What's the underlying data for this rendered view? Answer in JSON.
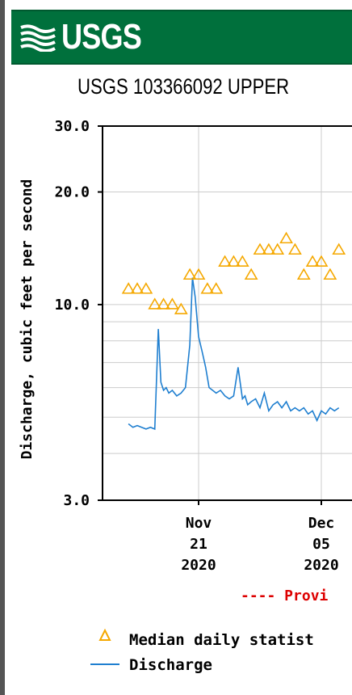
{
  "header": {
    "logo_text": "USGS",
    "logo_icon": "usgs-wave-logo-icon",
    "banner_color": "#00703c"
  },
  "chart_data": {
    "type": "line",
    "title": "USGS 103366092 UPPER",
    "ylabel": "Discharge, cubic feet per second",
    "xlabel": "",
    "y_scale": "log",
    "ylim": [
      3.0,
      30.0
    ],
    "y_ticks": [
      "30.0",
      "20.0",
      "10.0",
      "3.0"
    ],
    "y_tick_values": [
      30,
      20,
      10,
      3
    ],
    "x_ticks": [
      {
        "date": "2020-11-21",
        "lines": [
          "Nov",
          "21",
          "2020"
        ]
      },
      {
        "date": "2020-12-05",
        "lines": [
          "Dec",
          "05",
          "2020"
        ]
      }
    ],
    "grid": true,
    "provisional_note": "---- Provi",
    "legend": [
      {
        "symbol": "triangle",
        "label": "Median daily statist",
        "color": "#f5a800"
      },
      {
        "symbol": "line",
        "label": "Discharge",
        "color": "#1f7fd0"
      }
    ],
    "series": [
      {
        "name": "Median daily statist",
        "color": "#f5a800",
        "marker": "triangle",
        "x": [
          "2020-11-13",
          "2020-11-14",
          "2020-11-15",
          "2020-11-16",
          "2020-11-17",
          "2020-11-18",
          "2020-11-19",
          "2020-11-20",
          "2020-11-21",
          "2020-11-22",
          "2020-11-23",
          "2020-11-24",
          "2020-11-25",
          "2020-11-26",
          "2020-11-27",
          "2020-11-28",
          "2020-11-29",
          "2020-11-30",
          "2020-12-01",
          "2020-12-02",
          "2020-12-03",
          "2020-12-04",
          "2020-12-05",
          "2020-12-06",
          "2020-12-07"
        ],
        "values": [
          11.0,
          11.0,
          11.0,
          10.0,
          10.0,
          10.0,
          9.7,
          12.0,
          12.0,
          11.0,
          11.0,
          13.0,
          13.0,
          13.0,
          12.0,
          14.0,
          14.0,
          14.0,
          15.0,
          14.0,
          12.0,
          13.0,
          13.0,
          12.0,
          14.0
        ]
      },
      {
        "name": "Discharge",
        "color": "#1f7fd0",
        "marker": "none",
        "x": [
          "2020-11-13",
          "2020-11-13.5",
          "2020-11-14",
          "2020-11-14.5",
          "2020-11-15",
          "2020-11-15.5",
          "2020-11-16",
          "2020-11-16.4",
          "2020-11-16.7",
          "2020-11-17",
          "2020-11-17.3",
          "2020-11-17.6",
          "2020-11-18",
          "2020-11-18.5",
          "2020-11-19",
          "2020-11-19.5",
          "2020-11-20",
          "2020-11-20.3",
          "2020-11-20.6",
          "2020-11-21",
          "2020-11-21.4",
          "2020-11-21.8",
          "2020-11-22.2",
          "2020-11-22.6",
          "2020-11-23",
          "2020-11-23.5",
          "2020-11-24",
          "2020-11-24.5",
          "2020-11-25",
          "2020-11-25.5",
          "2020-11-26",
          "2020-11-26.3",
          "2020-11-26.6",
          "2020-11-27",
          "2020-11-27.5",
          "2020-11-28",
          "2020-11-28.5",
          "2020-11-29",
          "2020-11-29.5",
          "2020-11-30",
          "2020-11-30.5",
          "2020-12-01",
          "2020-12-01.5",
          "2020-12-02",
          "2020-12-02.5",
          "2020-12-03",
          "2020-12-03.5",
          "2020-12-04",
          "2020-12-04.5",
          "2020-12-05",
          "2020-12-05.5",
          "2020-12-06",
          "2020-12-06.5",
          "2020-12-07"
        ],
        "values": [
          4.8,
          4.7,
          4.75,
          4.7,
          4.65,
          4.7,
          4.65,
          8.6,
          6.2,
          5.9,
          6.0,
          5.8,
          5.9,
          5.7,
          5.8,
          6.0,
          7.8,
          11.8,
          10.5,
          8.2,
          7.5,
          6.8,
          6.0,
          5.9,
          5.8,
          5.9,
          5.7,
          5.6,
          5.7,
          6.8,
          5.6,
          5.7,
          5.4,
          5.5,
          5.6,
          5.3,
          5.8,
          5.2,
          5.4,
          5.5,
          5.3,
          5.5,
          5.2,
          5.3,
          5.2,
          5.3,
          5.1,
          5.2,
          4.9,
          5.2,
          5.1,
          5.3,
          5.2,
          5.3
        ]
      }
    ]
  }
}
